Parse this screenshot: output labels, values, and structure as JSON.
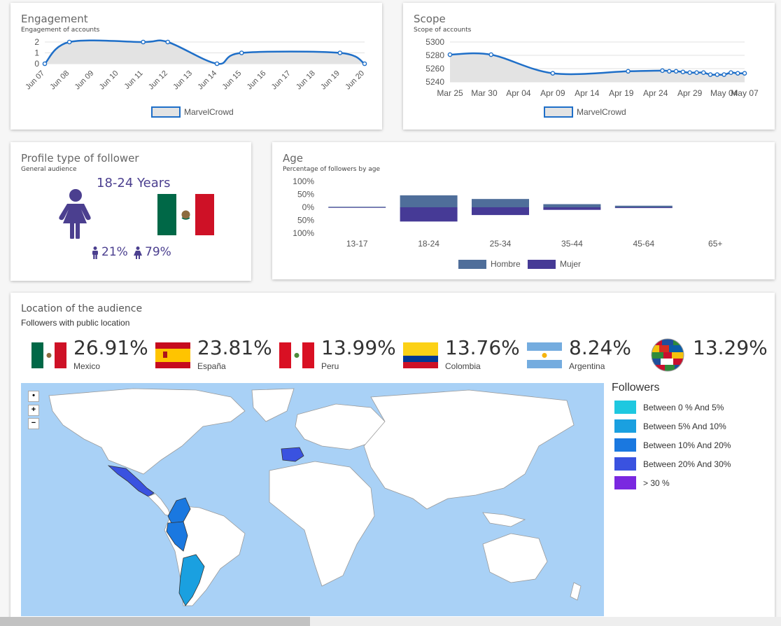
{
  "engagement": {
    "title": "Engagement",
    "subtitle": "Engagement of accounts",
    "y_ticks": [
      "2",
      "1",
      "0"
    ],
    "x_ticks": [
      "Jun 07",
      "Jun 08",
      "Jun 09",
      "Jun 10",
      "Jun 11",
      "Jun 12",
      "Jun 13",
      "Jun 14",
      "Jun 15",
      "Jun 16",
      "Jun 17",
      "Jun 18",
      "Jun 19",
      "Jun 20"
    ],
    "legend": "MarvelCrowd"
  },
  "scope": {
    "title": "Scope",
    "subtitle": "Scope of accounts",
    "y_ticks": [
      "5300",
      "5280",
      "5260",
      "5240"
    ],
    "x_ticks": [
      "Mar 25",
      "Mar 30",
      "Apr 04",
      "Apr 09",
      "Apr 14",
      "Apr 19",
      "Apr 24",
      "Apr 29",
      "May 04",
      "May 07"
    ],
    "legend": "MarvelCrowd"
  },
  "profile": {
    "title": "Profile type of follower",
    "subtitle": "General audience",
    "age_range": "18-24 Years",
    "male_pct": "21%",
    "female_pct": "79%",
    "icons": [
      "female-person-icon",
      "mexico-flag-icon",
      "male-icon",
      "female-icon"
    ],
    "accent": "#4b3f8f"
  },
  "age": {
    "title": "Age",
    "subtitle": "Percentage of followers by age",
    "y_ticks": [
      "100%",
      "50%",
      "0%",
      "50%",
      "100%"
    ],
    "legend": {
      "male": "Hombre",
      "female": "Mujer"
    },
    "colors": {
      "male": "#4f6e9a",
      "female": "#463a96"
    }
  },
  "location": {
    "title": "Location of the audience",
    "subtitle": "Followers with public location",
    "countries": [
      {
        "pct": "26.91%",
        "name": "Mexico",
        "icon": "mexico-flag-icon"
      },
      {
        "pct": "23.81%",
        "name": "España",
        "icon": "spain-flag-icon"
      },
      {
        "pct": "13.99%",
        "name": "Peru",
        "icon": "peru-flag-icon"
      },
      {
        "pct": "13.76%",
        "name": "Colombia",
        "icon": "colombia-flag-icon"
      },
      {
        "pct": "8.24%",
        "name": "Argentina",
        "icon": "argentina-flag-icon"
      },
      {
        "pct": "13.29%",
        "name": "",
        "icon": "world-flags-globe-icon"
      }
    ],
    "map": {
      "controls": [
        "•",
        "+",
        "−"
      ],
      "legend_title": "Followers",
      "legend": [
        {
          "label": "Between 0 % And 5%",
          "color": "#1ec8e0"
        },
        {
          "label": "Between 5% And 10%",
          "color": "#1aa0e0"
        },
        {
          "label": "Between 10% And 20%",
          "color": "#1a78e0"
        },
        {
          "label": "Between 20% And 30%",
          "color": "#3a52e0"
        },
        {
          "label": "> 30 %",
          "color": "#7a28e0"
        }
      ]
    }
  },
  "chart_data": [
    {
      "type": "area",
      "title": "Engagement",
      "subtitle": "Engagement of accounts",
      "x": [
        "Jun 07",
        "Jun 08",
        "Jun 11",
        "Jun 12",
        "Jun 14",
        "Jun 15",
        "Jun 19",
        "Jun 20"
      ],
      "series": [
        {
          "name": "MarvelCrowd",
          "values": [
            0,
            2,
            2,
            2,
            0,
            1,
            1,
            0
          ]
        }
      ],
      "ylim": [
        0,
        2
      ],
      "grid": true,
      "legend": "bottom"
    },
    {
      "type": "area",
      "title": "Scope",
      "subtitle": "Scope of accounts",
      "x": [
        "Mar 25",
        "Mar 31",
        "Apr 09",
        "Apr 20",
        "Apr 25",
        "Apr 26",
        "Apr 27",
        "Apr 28",
        "Apr 29",
        "Apr 30",
        "May 01",
        "May 02",
        "May 03",
        "May 04",
        "May 05",
        "May 06",
        "May 07"
      ],
      "series": [
        {
          "name": "MarvelCrowd",
          "values": [
            5281,
            5281,
            5253,
            5256,
            5257,
            5256,
            5256,
            5255,
            5254,
            5254,
            5254,
            5251,
            5251,
            5251,
            5254,
            5253,
            5253
          ]
        }
      ],
      "ylim": [
        5240,
        5300
      ],
      "grid": true,
      "legend": "bottom"
    },
    {
      "type": "bar",
      "title": "Age",
      "subtitle": "Percentage of followers by age",
      "categories": [
        "13-17",
        "18-24",
        "25-34",
        "35-44",
        "45-64",
        "65+"
      ],
      "series": [
        {
          "name": "Hombre",
          "values": [
            2,
            46,
            32,
            12,
            6,
            0
          ]
        },
        {
          "name": "Mujer",
          "values": [
            2,
            55,
            30,
            10,
            3,
            0
          ]
        }
      ],
      "ylim": [
        -100,
        100
      ],
      "legend": "bottom"
    }
  ]
}
